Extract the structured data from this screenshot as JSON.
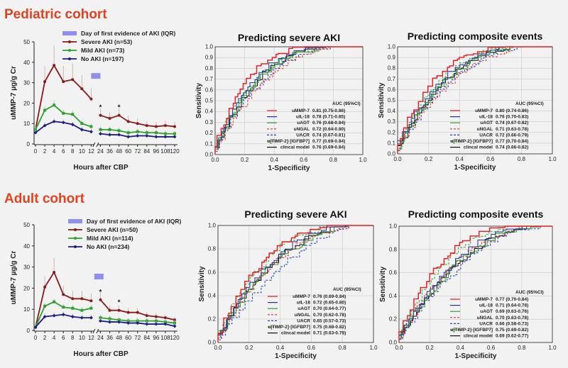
{
  "colors": {
    "severe": "#8b1a1a",
    "mild": "#2ea12e",
    "none": "#1c1c8c",
    "iqr": "#8f8fef",
    "cohort_title": "#e2421f"
  },
  "left_legend": {
    "iqr_label": "Day of first evidence of AKI (IQR)"
  },
  "chart_data": [
    {
      "type": "line",
      "cohort": "Pediatric  cohort",
      "xlabel": "Hours after CBP",
      "ylabel": "uMMP-7 µg/g Cr",
      "ylim": [
        0,
        50
      ],
      "yticks": [
        "0",
        "10",
        "20",
        "30",
        "40",
        "50"
      ],
      "x": [
        "0",
        "2",
        "4",
        "6",
        "8",
        "10",
        "12",
        "24",
        "36",
        "48",
        "60",
        "72",
        "84",
        "96",
        "108",
        "120"
      ],
      "annotations": [
        {
          "x": "24",
          "text": "*"
        },
        {
          "x": "48",
          "text": "*"
        }
      ],
      "iqr": {
        "x_start": "12",
        "x_end": "24",
        "y": 33.3
      },
      "series": [
        {
          "name": "Severe AKI (n=53)",
          "key": "severe",
          "values": [
            7,
            30.5,
            38.5,
            30.5,
            31.5,
            27,
            22,
            14,
            12.5,
            14,
            11,
            10,
            9,
            8.5,
            9,
            8.5
          ]
        },
        {
          "name": "Mild AKI (n=73)",
          "key": "mild",
          "values": [
            7,
            16.5,
            19,
            15,
            14.5,
            10,
            8.5,
            7,
            7,
            6.5,
            5.5,
            6,
            5.5,
            5.5,
            5,
            5
          ]
        },
        {
          "name": "No AKI (n=197)",
          "key": "none",
          "values": [
            5.5,
            9,
            11,
            10.5,
            9.5,
            7,
            6,
            5,
            4.5,
            4.5,
            3.5,
            4,
            4,
            3.5,
            3.5,
            3.5
          ]
        }
      ]
    },
    {
      "type": "line",
      "cohort": "Adult cohort",
      "xlabel": "Hours after CBP",
      "ylabel": "uMMP-7 µg/g Cr",
      "ylim": [
        0,
        50
      ],
      "yticks": [
        "0",
        "10",
        "20",
        "30",
        "40",
        "50"
      ],
      "x": [
        "0",
        "2",
        "4",
        "6",
        "8",
        "10",
        "12",
        "24",
        "36",
        "48",
        "60",
        "72",
        "84",
        "96",
        "108",
        "120"
      ],
      "annotations": [
        {
          "x": "24",
          "text": "*"
        },
        {
          "x": "48",
          "text": "*"
        }
      ],
      "iqr": {
        "x_start": "16",
        "x_end": "28",
        "y": 25.5
      },
      "series": [
        {
          "name": "Severe AKI (n=50)",
          "key": "severe",
          "values": [
            1.5,
            20.5,
            27.5,
            17,
            15,
            15,
            14,
            14.5,
            9.5,
            9.5,
            8.5,
            8.5,
            7,
            6.5,
            6,
            5
          ]
        },
        {
          "name": "Mild AKI (n=114)",
          "key": "mild",
          "values": [
            1.5,
            11.5,
            13.5,
            11,
            10.5,
            9.5,
            10.5,
            6,
            5.5,
            5,
            4.5,
            4.5,
            4.5,
            4.5,
            4,
            3.5
          ]
        },
        {
          "name": "No AKI (n=234)",
          "key": "none",
          "values": [
            1.5,
            6.5,
            7,
            7.5,
            6.5,
            6,
            6,
            4.5,
            4,
            4,
            3.5,
            3.5,
            3,
            3,
            3,
            2
          ]
        }
      ]
    },
    {
      "type": "roc",
      "title": "Predicting severe AKI",
      "xlabel": "1-Specificity",
      "ylabel": "Sensitivity",
      "xticks": [
        "0.0",
        "0.2",
        "0.4",
        "0.6",
        "0.8",
        "1.0"
      ],
      "yticks": [
        "0.0",
        "0.1",
        "0.2",
        "0.3",
        "0.4",
        "0.5",
        "0.6",
        "0.7",
        "0.8",
        "0.9",
        "1.0"
      ],
      "legend_header": "AUC (95%CI)",
      "series": [
        {
          "name": "uMMP-7",
          "auc": "0.81 (0.75-0.86)",
          "key": "mmp7"
        },
        {
          "name": "uIL-18",
          "auc": "0.78 (0.71-0.85)",
          "key": "il18"
        },
        {
          "name": "uAGT",
          "auc": "0.76 (0.68-0.84)",
          "key": "agt"
        },
        {
          "name": "uNGAL",
          "auc": "0.72 (0.64-0.80)",
          "key": "ngal"
        },
        {
          "name": "UACR",
          "auc": "0.74 (0.67-0.81)",
          "key": "uacr"
        },
        {
          "name": "u[TIMP-2]·[IGFBP7]",
          "auc": "0.77 (0.69-0.84)",
          "key": "timp"
        },
        {
          "name": "clincal model",
          "auc": "0.76 (0.69-0.84)",
          "key": "clin"
        }
      ]
    },
    {
      "type": "roc",
      "title": "Predicting composite events",
      "xlabel": "1-Specificity",
      "ylabel": "Sensitivity",
      "xticks": [
        "0.0",
        "0.2",
        "0.4",
        "0.6",
        "0.8",
        "1.0"
      ],
      "yticks": [
        "0.0",
        "0.1",
        "0.2",
        "0.3",
        "0.4",
        "0.5",
        "0.6",
        "0.7",
        "0.8",
        "0.9",
        "1.0"
      ],
      "legend_header": "AUC (95%CI)",
      "series": [
        {
          "name": "uMMP-7",
          "auc": "0.80 (0.74-0.86)",
          "key": "mmp7"
        },
        {
          "name": "uIL-18",
          "auc": "0.76 (0.70-0.83)",
          "key": "il18"
        },
        {
          "name": "uAGT",
          "auc": "0.74 (0.67-0.82)",
          "key": "agt"
        },
        {
          "name": "uNGAL",
          "auc": "0.71 (0.63-0.78)",
          "key": "ngal"
        },
        {
          "name": "UACR",
          "auc": "0.72 (0.66-0.79)",
          "key": "uacr"
        },
        {
          "name": "u[TIMP-2]·[IGFBP7]",
          "auc": "0.77 (0.70-0.84)",
          "key": "timp"
        },
        {
          "name": "clincal model",
          "auc": "0.74 (0.66-0.82)",
          "key": "clin"
        }
      ]
    },
    {
      "type": "roc",
      "title": "Predicting severe AKI",
      "xlabel": "1-Specificity",
      "ylabel": "Sensitivity",
      "xticks": [
        "0.0",
        "0.2",
        "0.4",
        "0.6",
        "0.8",
        "1.0"
      ],
      "yticks": [
        "0.0",
        "0.2",
        "0.4",
        "0.6",
        "0.8",
        "1.0"
      ],
      "legend_header": "AUC (95%CI)",
      "series": [
        {
          "name": "uMMP-7",
          "auc": "0.76 (0.69-0.84)",
          "key": "mmp7"
        },
        {
          "name": "uIL-18",
          "auc": "0.72 (0.65-0.80)",
          "key": "il18"
        },
        {
          "name": "uAGT",
          "auc": "0.70 (0.64-0.77)",
          "key": "agt"
        },
        {
          "name": "uNGAL",
          "auc": "0.70 (0.62-0.78)",
          "key": "ngal"
        },
        {
          "name": "UACR",
          "auc": "0.65 (0.57-0.73)",
          "key": "uacr"
        },
        {
          "name": "u[TIMP-2]·[IGFBP7]",
          "auc": "0.75 (0.68-0.82)",
          "key": "timp"
        },
        {
          "name": "clincal model",
          "auc": "0.71 (0.63-0.78)",
          "key": "clin"
        }
      ]
    },
    {
      "type": "roc",
      "title": "Predicting composite events",
      "xlabel": "1-Specificity",
      "ylabel": "Sensitivity",
      "xticks": [
        "0.0",
        "0.2",
        "0.4",
        "0.6",
        "0.8",
        "1.0"
      ],
      "yticks": [
        "0.0",
        "0.2",
        "0.4",
        "0.6",
        "0.8",
        "1.0"
      ],
      "legend_header": "AUC (95%CI)",
      "series": [
        {
          "name": "uMMP-7",
          "auc": "0.77 (0.70-0.84)",
          "key": "mmp7"
        },
        {
          "name": "uIL-18",
          "auc": "0.71 (0.64-0.78)",
          "key": "il18"
        },
        {
          "name": "uAGT",
          "auc": "0.69 (0.63-0.76)",
          "key": "agt"
        },
        {
          "name": "uNGAL",
          "auc": "0.70 (0.63-0.78)",
          "key": "ngal"
        },
        {
          "name": "UACR",
          "auc": "0.66 (0.58-0.73)",
          "key": "uacr"
        },
        {
          "name": "u[TIMP-2]·[IGFBP7]",
          "auc": "0.75 (0.69-0.82)",
          "key": "timp"
        },
        {
          "name": "clincal model",
          "auc": "0.69 (0.62-0.77)",
          "key": "clin"
        }
      ]
    }
  ],
  "roc_styles": {
    "mmp7": {
      "color": "#e8191c",
      "dash": ""
    },
    "il18": {
      "color": "#2030a0",
      "dash": ""
    },
    "agt": {
      "color": "#2ca02c",
      "dash": ""
    },
    "ngal": {
      "color": "#e03030",
      "dash": "3,2"
    },
    "uacr": {
      "color": "#2040c0",
      "dash": "3,2"
    },
    "timp": {
      "color": "#33aa33",
      "dash": "3,2"
    },
    "clin": {
      "color": "#111111",
      "dash": ""
    }
  }
}
